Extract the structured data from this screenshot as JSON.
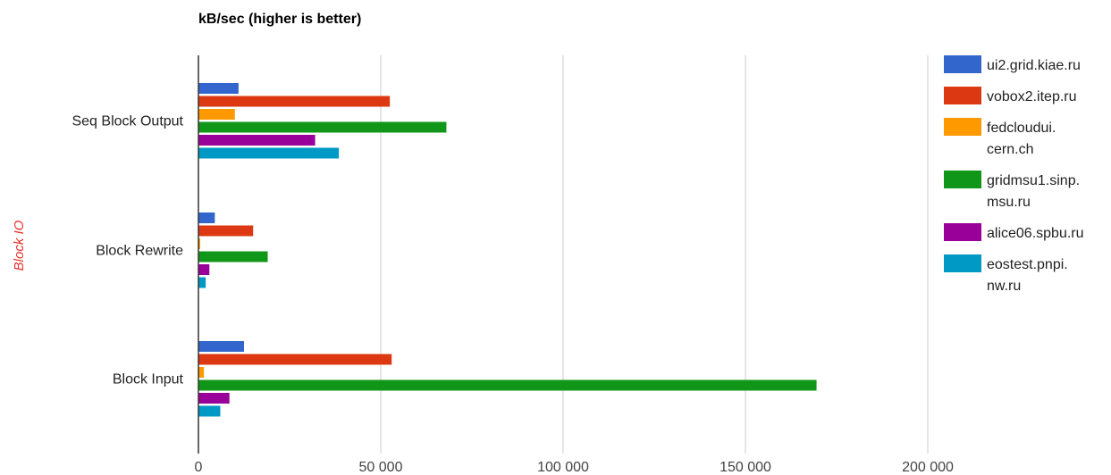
{
  "chart_data": {
    "type": "bar",
    "orientation": "horizontal",
    "title": "kB/sec (higher is better)",
    "ylabel": "Block IO",
    "xlabel": "",
    "categories": [
      "Seq Block Output",
      "Block Rewrite",
      "Block Input"
    ],
    "xlim": [
      0,
      250000
    ],
    "xticks": [
      0,
      50000,
      100000,
      150000,
      200000
    ],
    "xtick_labels": [
      "0",
      "50 000",
      "100 000",
      "150 000",
      "200 000"
    ],
    "grid": true,
    "legend_position": "right",
    "series": [
      {
        "name": "ui2.grid.kiae.ru",
        "legend_lines": [
          "ui2.grid.kiae.ru"
        ],
        "color": "#3366cc",
        "values": [
          11000,
          4500,
          12500
        ]
      },
      {
        "name": "vobox2.itep.ru",
        "legend_lines": [
          "vobox2.itep.ru"
        ],
        "color": "#dc3912",
        "values": [
          52500,
          15000,
          53000
        ]
      },
      {
        "name": "fedcloudui.cern.ch",
        "legend_lines": [
          "fedcloudui.",
          "cern.ch"
        ],
        "color": "#ff9900",
        "values": [
          10000,
          500,
          1500
        ]
      },
      {
        "name": "gridmsu1.sinp.msu.ru",
        "legend_lines": [
          "gridmsu1.sinp.",
          "msu.ru"
        ],
        "color": "#109618",
        "values": [
          68000,
          19000,
          169500
        ]
      },
      {
        "name": "alice06.spbu.ru",
        "legend_lines": [
          "alice06.spbu.ru"
        ],
        "color": "#990099",
        "values": [
          32000,
          3000,
          8500
        ]
      },
      {
        "name": "eostest.pnpi.nw.ru",
        "legend_lines": [
          "eostest.pnpi.",
          "nw.ru"
        ],
        "color": "#0099c6",
        "values": [
          38500,
          2000,
          6000
        ]
      }
    ]
  }
}
